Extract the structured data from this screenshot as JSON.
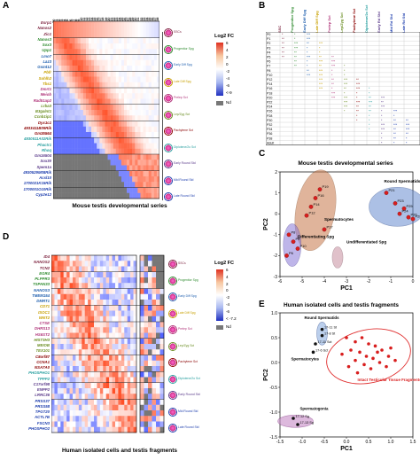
{
  "panels": {
    "A": {
      "label": "A",
      "caption": "Mouse testis developmental series",
      "columns": [
        "P0",
        "P1",
        "P2",
        "P3",
        "P4",
        "P5",
        "P6",
        "P7",
        "P8",
        "P9",
        "P10",
        "P11",
        "P12",
        "P13",
        "P14",
        "P15",
        "P16",
        "P17",
        "P18",
        "P19",
        "P20",
        "P21",
        "P22",
        "P23",
        "P24",
        "P25",
        "P26",
        "P27",
        "P28",
        "P29",
        "P30",
        "P31",
        "P32",
        "P33",
        "P34",
        "P35",
        "P36",
        "P37",
        "P38"
      ],
      "genes": [
        {
          "name": "Esrp1",
          "color": "#7b1f3c"
        },
        {
          "name": "Nanos2",
          "color": "#7b1f3c"
        },
        {
          "name": "Zic1",
          "color": "#7b1f3c"
        },
        {
          "name": "Nanos3",
          "color": "#2e8b2e"
        },
        {
          "name": "Sox3",
          "color": "#2e8b2e"
        },
        {
          "name": "Upp1",
          "color": "#2e8b2e"
        },
        {
          "name": "Lmo7",
          "color": "#1f5fae"
        },
        {
          "name": "Laz3",
          "color": "#1f5fae"
        },
        {
          "name": "Gsmt12",
          "color": "#1f5fae"
        },
        {
          "name": "Pbfr",
          "color": "#c8a000"
        },
        {
          "name": "Sohlh2",
          "color": "#c8a000"
        },
        {
          "name": "Tbs1",
          "color": "#c8a000"
        },
        {
          "name": "Dmrt1",
          "color": "#b0357a"
        },
        {
          "name": "Meiob",
          "color": "#b0357a"
        },
        {
          "name": "Rad51ap2",
          "color": "#b0357a"
        },
        {
          "name": "Lrba3",
          "color": "#6b8e23"
        },
        {
          "name": "B3galnt1",
          "color": "#6b8e23"
        },
        {
          "name": "Ccnb1ip1",
          "color": "#6b8e23"
        },
        {
          "name": "Dyx1c1",
          "color": "#8b0000"
        },
        {
          "name": "4933411B09Rik",
          "color": "#8b0000"
        },
        {
          "name": "Gm35564",
          "color": "#8b0000"
        },
        {
          "name": "4930511A02Rik",
          "color": "#2aa0a0"
        },
        {
          "name": "Phactr1",
          "color": "#2aa0a0"
        },
        {
          "name": "Rhoq",
          "color": "#2aa0a0"
        },
        {
          "name": "Gm16504",
          "color": "#5a3a8a"
        },
        {
          "name": "Sox30",
          "color": "#5a3a8a"
        },
        {
          "name": "Spem1a",
          "color": "#5a3a8a"
        },
        {
          "name": "4930529M08Rik",
          "color": "#1f3fae"
        },
        {
          "name": "Acsl10",
          "color": "#1f3fae"
        },
        {
          "name": "1700021K15Rik",
          "color": "#1f3fae"
        },
        {
          "name": "1700001O10Rik",
          "color": "#1f3fae"
        },
        {
          "name": "Cyp2e12",
          "color": "#1f3fae"
        }
      ],
      "stages": [
        "SSCs",
        "Progenitor Spg",
        "Early Diff Spg",
        "Late Diff Spg",
        "Prelep Sct",
        "Lep/Zyg Sct",
        "Pachytene Sct",
        "Diplotene/2o Sct",
        "Early Round Std",
        "Mid Round Std",
        "Late Round Std"
      ],
      "stage_colors": [
        "#7b1f3c",
        "#2e8b2e",
        "#1f5fae",
        "#c8a000",
        "#b0357a",
        "#6b8e23",
        "#8b0000",
        "#2aa0a0",
        "#5a3a8a",
        "#1f3fae",
        "#1f3fae"
      ],
      "legend": {
        "title": "Log2 FC",
        "ticks": [
          "6",
          "4",
          "2",
          "0",
          "-2",
          "-4",
          "-6",
          "<-9"
        ],
        "nd": "Nd"
      }
    },
    "B": {
      "label": "B",
      "column_headers": [
        "SSC",
        "Progenitor Spg",
        "Early Diff Spg",
        "Late Diff Spg",
        "Prelep Sct",
        "Lep/Zyg Sct",
        "Pachytene Sct",
        "Diplotene/2o Sct",
        "Early Rd Std",
        "Mid Rd Std",
        "Late Rd Std"
      ],
      "rows": [
        "P0",
        "P1",
        "P2",
        "P3",
        "P4",
        "P5",
        "P6",
        "P7",
        "P8",
        "P10",
        "P12",
        "P14",
        "P16",
        "P18",
        "P20",
        "P22",
        "P24",
        "P26",
        "P28",
        "P30",
        "P32",
        "P34",
        "P36",
        "P38",
        "Adult"
      ]
    },
    "C": {
      "label": "C",
      "caption": "Mouse testis developmental series",
      "chart_data": {
        "type": "scatter",
        "xlabel": "PC1",
        "ylabel": "PC2",
        "xlim": [
          -6,
          0
        ],
        "ylim": [
          -3,
          3
        ],
        "xticks": [
          "-6",
          "-5",
          "-4",
          "-3",
          "-2",
          "-1",
          "0"
        ],
        "yticks": [
          "2",
          "1",
          "0",
          "-1",
          "-2",
          "-3"
        ],
        "annotations": [
          "Spermatocytes",
          "Round Spermatids",
          "Differentiating Spg",
          "Undifferentiated Spg"
        ],
        "point_labels": [
          "P19",
          "P16",
          "P14",
          "P12",
          "P17",
          "P21",
          "P23",
          "P25",
          "P24",
          "P26",
          "P28",
          "P8",
          "P9",
          "P10",
          "P6"
        ],
        "points": [
          {
            "label": "P19",
            "x": -4.2,
            "y": 2.0
          },
          {
            "label": "P16",
            "x": -4.4,
            "y": 1.5
          },
          {
            "label": "P14",
            "x": -4.6,
            "y": 1.0
          },
          {
            "label": "P12",
            "x": -4.8,
            "y": 0.5
          },
          {
            "label": "P17",
            "x": -4.0,
            "y": -0.3
          },
          {
            "label": "P21",
            "x": -1.2,
            "y": 1.8
          },
          {
            "label": "P23",
            "x": -0.8,
            "y": 1.2
          },
          {
            "label": "P25",
            "x": -0.4,
            "y": 0.9
          },
          {
            "label": "P24",
            "x": -0.6,
            "y": 0.6
          },
          {
            "label": "P26",
            "x": -0.2,
            "y": 0.4
          },
          {
            "label": "P28",
            "x": 0.0,
            "y": 0.3
          },
          {
            "label": "P8",
            "x": -5.6,
            "y": -0.6
          },
          {
            "label": "P9",
            "x": -5.4,
            "y": -1.0
          },
          {
            "label": "P10",
            "x": -5.2,
            "y": -1.4
          },
          {
            "label": "P6",
            "x": -5.7,
            "y": -1.8
          }
        ]
      }
    },
    "D": {
      "label": "D",
      "caption": "Human isolated cells and testis fragments",
      "genes": [
        {
          "name": "ID4",
          "color": "#7b1f3c"
        },
        {
          "name": "NANOS2",
          "color": "#7b1f3c"
        },
        {
          "name": "TCN2",
          "color": "#7b1f3c"
        },
        {
          "name": "EGR4",
          "color": "#2e8b2e"
        },
        {
          "name": "PLPPR3",
          "color": "#2e8b2e"
        },
        {
          "name": "TSPAN33",
          "color": "#2e8b2e"
        },
        {
          "name": "NANOS3",
          "color": "#1f5fae"
        },
        {
          "name": "TMEM154",
          "color": "#1f5fae"
        },
        {
          "name": "DMRT1",
          "color": "#1f5fae"
        },
        {
          "name": "CD71",
          "color": "#c8a000"
        },
        {
          "name": "ISOC1",
          "color": "#c8a000"
        },
        {
          "name": "WNT2",
          "color": "#c8a000"
        },
        {
          "name": "CTSE",
          "color": "#b0357a"
        },
        {
          "name": "DHRS13",
          "color": "#b0357a"
        },
        {
          "name": "HS6ST2",
          "color": "#b0357a"
        },
        {
          "name": "HIST3H3",
          "color": "#6b8e23"
        },
        {
          "name": "MEIOB",
          "color": "#6b8e23"
        },
        {
          "name": "TEX101",
          "color": "#6b8e23"
        },
        {
          "name": "C8orf87",
          "color": "#8b0000"
        },
        {
          "name": "CCNA1",
          "color": "#8b0000"
        },
        {
          "name": "NSA7A0",
          "color": "#8b0000"
        },
        {
          "name": "PHOSPHO1",
          "color": "#2aa0a0"
        },
        {
          "name": "TPPP2",
          "color": "#2aa0a0"
        },
        {
          "name": "C17orf98",
          "color": "#5a3a8a"
        },
        {
          "name": "ENPP2",
          "color": "#5a3a8a"
        },
        {
          "name": "LRRC36",
          "color": "#5a3a8a"
        },
        {
          "name": "PRSS37",
          "color": "#1f3fae"
        },
        {
          "name": "PRSS58",
          "color": "#1f3fae"
        },
        {
          "name": "TPGT20",
          "color": "#1f3fae"
        },
        {
          "name": "ACTL7B",
          "color": "#1f3fae"
        },
        {
          "name": "FSCN3",
          "color": "#1f3fae"
        },
        {
          "name": "PHOSPHO2",
          "color": "#1f3fae"
        }
      ],
      "stages": [
        "SSCs",
        "Progenitor Spg",
        "Early Diff Spg",
        "Late Diff Spg",
        "Prelep Sct",
        "Lep/Zyg Sct",
        "Pachytene Sct",
        "Diplotene/2o Sct",
        "Early Round Std",
        "Mid Round Std",
        "Late Round Std"
      ],
      "legend": {
        "title": "Log2 FC",
        "ticks": [
          "6",
          "4",
          "2",
          "0",
          "-2",
          "-4",
          "-6",
          "< -7.2"
        ],
        "nd": "Nd"
      }
    },
    "E": {
      "label": "E",
      "caption": "Human isolated cells and testis fragments",
      "chart_data": {
        "type": "scatter",
        "xlabel": "PC1",
        "ylabel": "PC2",
        "xlim": [
          -1.5,
          1.5
        ],
        "ylim": [
          -1.5,
          1.5
        ],
        "xticks": [
          "-1.5",
          "-1.0",
          "-0.5",
          "0.0",
          "0.5",
          "1.0",
          "1.5"
        ],
        "yticks": [
          "1.0",
          "0.5",
          "0.0",
          "-0.5",
          "-1.0",
          "-1.5"
        ],
        "annotations": [
          "Round Spermatids",
          "Spermatocytes",
          "Intact Testicular Tissue Fragments",
          "Spermatogonia"
        ],
        "point_labels": [
          "17-11 St",
          "17-8 St",
          "17-6 Sct",
          "17-11 Sct",
          "17-12 Sg",
          "17-13 Sg"
        ],
        "black_points": [
          {
            "label": "17-11 St",
            "x": -0.55,
            "y": 1.1
          },
          {
            "label": "17-8 St",
            "x": -0.55,
            "y": 0.95
          },
          {
            "label": "17-6 Sct",
            "x": -0.75,
            "y": 0.55
          },
          {
            "label": "17-11 Sct",
            "x": -0.7,
            "y": 0.75
          },
          {
            "label": "17-12 Sg",
            "x": -1.2,
            "y": -1.05
          },
          {
            "label": "17-13 Sg",
            "x": -1.1,
            "y": -1.2
          }
        ],
        "red_points": [
          {
            "x": 0.0,
            "y": 0.9
          },
          {
            "x": 0.2,
            "y": 0.8
          },
          {
            "x": 0.35,
            "y": 0.9
          },
          {
            "x": 0.5,
            "y": 0.75
          },
          {
            "x": 0.65,
            "y": 0.7
          },
          {
            "x": 0.8,
            "y": 0.6
          },
          {
            "x": 0.95,
            "y": 0.45
          },
          {
            "x": 1.1,
            "y": 0.35
          },
          {
            "x": 0.1,
            "y": 0.6
          },
          {
            "x": 0.3,
            "y": 0.55
          },
          {
            "x": 0.45,
            "y": 0.45
          },
          {
            "x": 0.6,
            "y": 0.4
          },
          {
            "x": 0.75,
            "y": 0.3
          },
          {
            "x": 0.9,
            "y": 0.2
          },
          {
            "x": 0.2,
            "y": 0.35
          },
          {
            "x": 0.4,
            "y": 0.25
          },
          {
            "x": 0.55,
            "y": 0.15
          },
          {
            "x": 0.05,
            "y": 0.2
          },
          {
            "x": 0.25,
            "y": 0.05
          },
          {
            "x": 0.7,
            "y": 0.55
          },
          {
            "x": 1.0,
            "y": 0.65
          },
          {
            "x": -0.1,
            "y": 0.5
          }
        ]
      }
    }
  }
}
